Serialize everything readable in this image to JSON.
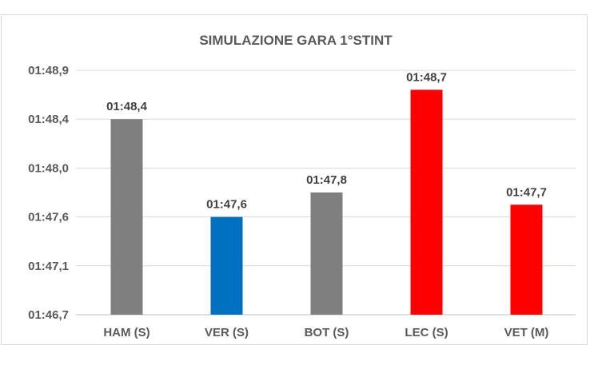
{
  "chart_data": {
    "type": "bar",
    "title": "SIMULAZIONE GARA 1°STINT",
    "xlabel": "",
    "ylabel": "",
    "categories": [
      "HAM (S)",
      "VER (S)",
      "BOT (S)",
      "LEC (S)",
      "VET (M)"
    ],
    "values": [
      108.4,
      107.6,
      107.8,
      108.7,
      107.7
    ],
    "value_labels": [
      "01:48,4",
      "01:47,6",
      "01:47,8",
      "01:48,7",
      "01:47,7"
    ],
    "bar_colors": [
      "#7f7f7f",
      "#0070c0",
      "#7f7f7f",
      "#ff0000",
      "#ff0000"
    ],
    "y_ticks": [
      {
        "label": "01:46,7",
        "value": 106.7
      },
      {
        "label": "01:47,1",
        "value": 107.1
      },
      {
        "label": "01:47,6",
        "value": 107.6
      },
      {
        "label": "01:48,0",
        "value": 108.0
      },
      {
        "label": "01:48,4",
        "value": 108.4
      },
      {
        "label": "01:48,9",
        "value": 108.9
      }
    ],
    "ylim": [
      106.7,
      108.9
    ],
    "grid": true,
    "legend": "none"
  }
}
